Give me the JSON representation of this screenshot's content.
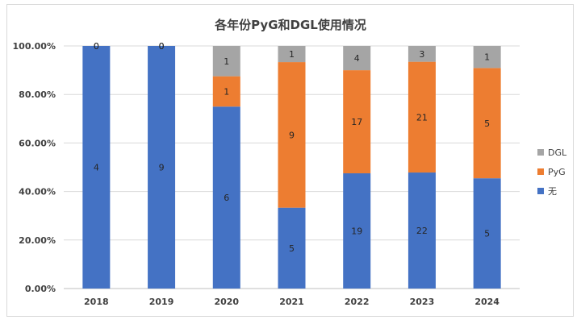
{
  "chart_data": {
    "type": "bar",
    "stacked": "percent",
    "title": "各年份PyG和DGL使用情况",
    "categories": [
      "2018",
      "2019",
      "2020",
      "2021",
      "2022",
      "2023",
      "2024"
    ],
    "series": [
      {
        "name": "无",
        "color": "#4472c4",
        "values": [
          4,
          9,
          6,
          5,
          19,
          22,
          5
        ]
      },
      {
        "name": "PyG",
        "color": "#ed7d31",
        "values": [
          0,
          0,
          1,
          9,
          17,
          21,
          5
        ]
      },
      {
        "name": "DGL",
        "color": "#a5a5a5",
        "values": [
          0,
          0,
          1,
          1,
          4,
          3,
          1
        ]
      }
    ],
    "y_ticks": [
      "0.00%",
      "20.00%",
      "40.00%",
      "60.00%",
      "80.00%",
      "100.00%"
    ],
    "ylim": [
      0,
      100
    ],
    "grid": true,
    "legend_position": "right"
  }
}
